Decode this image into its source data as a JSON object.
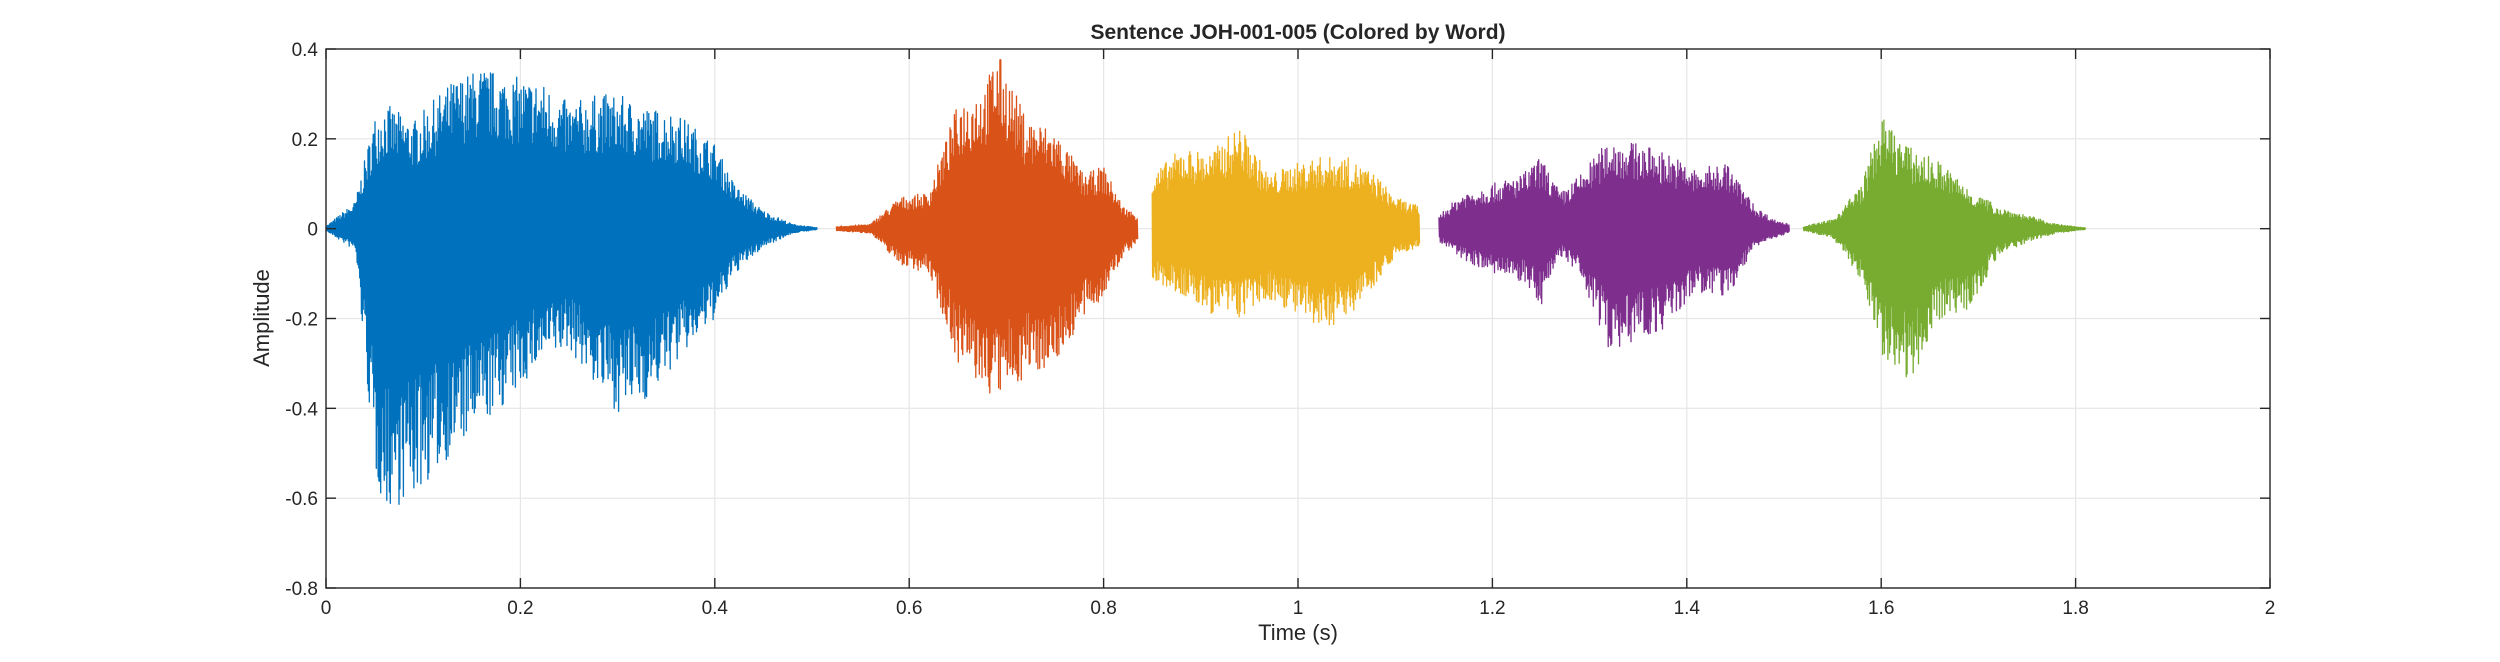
{
  "chart_data": {
    "type": "line",
    "title": "Sentence JOH-001-005 (Colored by Word)",
    "xlabel": "Time (s)",
    "ylabel": "Amplitude",
    "xlim": [
      0,
      2
    ],
    "ylim": [
      -0.8,
      0.4
    ],
    "xticks": [
      0,
      0.2,
      0.4,
      0.6,
      0.8,
      1,
      1.2,
      1.4,
      1.6,
      1.8,
      2
    ],
    "xtick_labels": [
      "0",
      "0.2",
      "0.4",
      "0.6",
      "0.8",
      "1",
      "1.2",
      "1.4",
      "1.6",
      "1.8",
      "2"
    ],
    "yticks": [
      -0.8,
      -0.6,
      -0.4,
      -0.2,
      0,
      0.2,
      0.4
    ],
    "ytick_labels": [
      "-0.8",
      "-0.6",
      "-0.4",
      "-0.2",
      "0",
      "0.2",
      "0.4"
    ],
    "grid": true,
    "legend": false,
    "series": [
      {
        "color": "#0072BD",
        "t_start": 0.0,
        "t_end": 0.505,
        "envelope": [
          {
            "t": 0.0,
            "max": 0.005,
            "min": -0.005
          },
          {
            "t": 0.03,
            "max": 0.06,
            "min": -0.05
          },
          {
            "t": 0.05,
            "max": 0.25,
            "min": -0.55
          },
          {
            "t": 0.06,
            "max": 0.28,
            "min": -0.63
          },
          {
            "t": 0.09,
            "max": 0.24,
            "min": -0.6
          },
          {
            "t": 0.13,
            "max": 0.33,
            "min": -0.5
          },
          {
            "t": 0.16,
            "max": 0.36,
            "min": -0.44
          },
          {
            "t": 0.19,
            "max": 0.34,
            "min": -0.38
          },
          {
            "t": 0.22,
            "max": 0.33,
            "min": -0.3
          },
          {
            "t": 0.25,
            "max": 0.28,
            "min": -0.27
          },
          {
            "t": 0.28,
            "max": 0.3,
            "min": -0.36
          },
          {
            "t": 0.3,
            "max": 0.3,
            "min": -0.41
          },
          {
            "t": 0.33,
            "max": 0.27,
            "min": -0.38
          },
          {
            "t": 0.36,
            "max": 0.26,
            "min": -0.3
          },
          {
            "t": 0.4,
            "max": 0.19,
            "min": -0.2
          },
          {
            "t": 0.42,
            "max": 0.1,
            "min": -0.1
          },
          {
            "t": 0.45,
            "max": 0.04,
            "min": -0.04
          },
          {
            "t": 0.48,
            "max": 0.01,
            "min": -0.01
          },
          {
            "t": 0.505,
            "max": 0.002,
            "min": -0.002
          }
        ]
      },
      {
        "color": "#D95319",
        "t_start": 0.525,
        "t_end": 0.835,
        "envelope": [
          {
            "t": 0.525,
            "max": 0.005,
            "min": -0.005
          },
          {
            "t": 0.56,
            "max": 0.01,
            "min": -0.01
          },
          {
            "t": 0.59,
            "max": 0.07,
            "min": -0.08
          },
          {
            "t": 0.62,
            "max": 0.08,
            "min": -0.1
          },
          {
            "t": 0.65,
            "max": 0.28,
            "min": -0.3
          },
          {
            "t": 0.68,
            "max": 0.33,
            "min": -0.37
          },
          {
            "t": 0.69,
            "max": 0.4,
            "min": -0.38
          },
          {
            "t": 0.72,
            "max": 0.25,
            "min": -0.33
          },
          {
            "t": 0.75,
            "max": 0.22,
            "min": -0.3
          },
          {
            "t": 0.78,
            "max": 0.12,
            "min": -0.2
          },
          {
            "t": 0.8,
            "max": 0.14,
            "min": -0.15
          },
          {
            "t": 0.82,
            "max": 0.05,
            "min": -0.06
          },
          {
            "t": 0.835,
            "max": 0.03,
            "min": -0.03
          }
        ]
      },
      {
        "color": "#EDB120",
        "t_start": 0.85,
        "t_end": 1.125,
        "envelope": [
          {
            "t": 0.85,
            "max": 0.12,
            "min": -0.12
          },
          {
            "t": 0.88,
            "max": 0.18,
            "min": -0.15
          },
          {
            "t": 0.91,
            "max": 0.17,
            "min": -0.19
          },
          {
            "t": 0.94,
            "max": 0.23,
            "min": -0.2
          },
          {
            "t": 0.97,
            "max": 0.12,
            "min": -0.16
          },
          {
            "t": 0.99,
            "max": 0.14,
            "min": -0.18
          },
          {
            "t": 1.02,
            "max": 0.16,
            "min": -0.23
          },
          {
            "t": 1.05,
            "max": 0.16,
            "min": -0.2
          },
          {
            "t": 1.08,
            "max": 0.12,
            "min": -0.12
          },
          {
            "t": 1.1,
            "max": 0.07,
            "min": -0.06
          },
          {
            "t": 1.125,
            "max": 0.05,
            "min": -0.04
          }
        ]
      },
      {
        "color": "#7E2F8E",
        "t_start": 1.145,
        "t_end": 1.505,
        "envelope": [
          {
            "t": 1.145,
            "max": 0.03,
            "min": -0.03
          },
          {
            "t": 1.17,
            "max": 0.08,
            "min": -0.07
          },
          {
            "t": 1.2,
            "max": 0.1,
            "min": -0.1
          },
          {
            "t": 1.23,
            "max": 0.12,
            "min": -0.12
          },
          {
            "t": 1.25,
            "max": 0.16,
            "min": -0.17
          },
          {
            "t": 1.27,
            "max": 0.08,
            "min": -0.06
          },
          {
            "t": 1.29,
            "max": 0.12,
            "min": -0.11
          },
          {
            "t": 1.32,
            "max": 0.2,
            "min": -0.27
          },
          {
            "t": 1.35,
            "max": 0.19,
            "min": -0.25
          },
          {
            "t": 1.38,
            "max": 0.17,
            "min": -0.22
          },
          {
            "t": 1.41,
            "max": 0.13,
            "min": -0.14
          },
          {
            "t": 1.44,
            "max": 0.15,
            "min": -0.16
          },
          {
            "t": 1.47,
            "max": 0.05,
            "min": -0.04
          },
          {
            "t": 1.49,
            "max": 0.02,
            "min": -0.02
          },
          {
            "t": 1.505,
            "max": 0.01,
            "min": -0.01
          }
        ]
      },
      {
        "color": "#77AC30",
        "t_start": 1.52,
        "t_end": 1.81,
        "envelope": [
          {
            "t": 1.52,
            "max": 0.005,
            "min": -0.005
          },
          {
            "t": 1.55,
            "max": 0.02,
            "min": -0.02
          },
          {
            "t": 1.58,
            "max": 0.1,
            "min": -0.12
          },
          {
            "t": 1.6,
            "max": 0.25,
            "min": -0.28
          },
          {
            "t": 1.63,
            "max": 0.18,
            "min": -0.34
          },
          {
            "t": 1.66,
            "max": 0.15,
            "min": -0.2
          },
          {
            "t": 1.69,
            "max": 0.09,
            "min": -0.18
          },
          {
            "t": 1.72,
            "max": 0.05,
            "min": -0.06
          },
          {
            "t": 1.75,
            "max": 0.03,
            "min": -0.03
          },
          {
            "t": 1.78,
            "max": 0.01,
            "min": -0.01
          },
          {
            "t": 1.81,
            "max": 0.002,
            "min": -0.002
          }
        ]
      }
    ]
  }
}
